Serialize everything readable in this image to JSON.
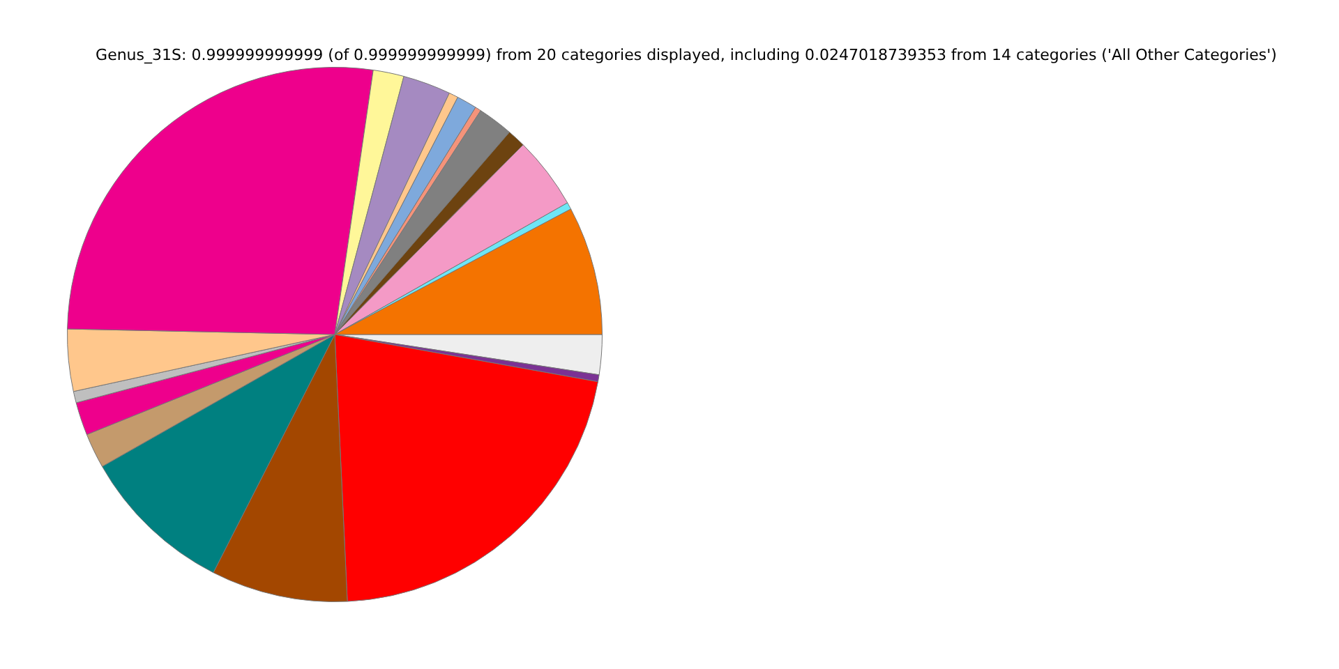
{
  "chart_data": {
    "type": "pie",
    "title": "Genus_31S: 0.999999999999 (of 0.999999999999) from 20 categories displayed, including 0.0247018739353 from 14 categories ('All Other Categories')",
    "categories": [
      null,
      null,
      null,
      null,
      null,
      null,
      null,
      null,
      null,
      null,
      null,
      null,
      null,
      null,
      null,
      null,
      null,
      null,
      null,
      null
    ],
    "values": [
      2.41,
      0.42,
      21.42,
      8.25,
      9.28,
      2.11,
      2.0,
      0.69,
      3.75,
      26.97,
      1.86,
      2.89,
      0.56,
      1.22,
      0.36,
      2.14,
      1.11,
      4.36,
      0.42,
      7.78
    ],
    "colors": [
      "#eeeeee",
      "#7b3294",
      "#ff0000",
      "#a34700",
      "#008080",
      "#c49a6c",
      "#ee008c",
      "#bfbfbf",
      "#ffc78c",
      "#ee008c",
      "#fff799",
      "#a58ac1",
      "#ffc78c",
      "#7ea9dc",
      "#f5937a",
      "#808080",
      "#6d4310",
      "#f49ac6",
      "#6ee6f5",
      "#f47300"
    ],
    "legend": false
  }
}
